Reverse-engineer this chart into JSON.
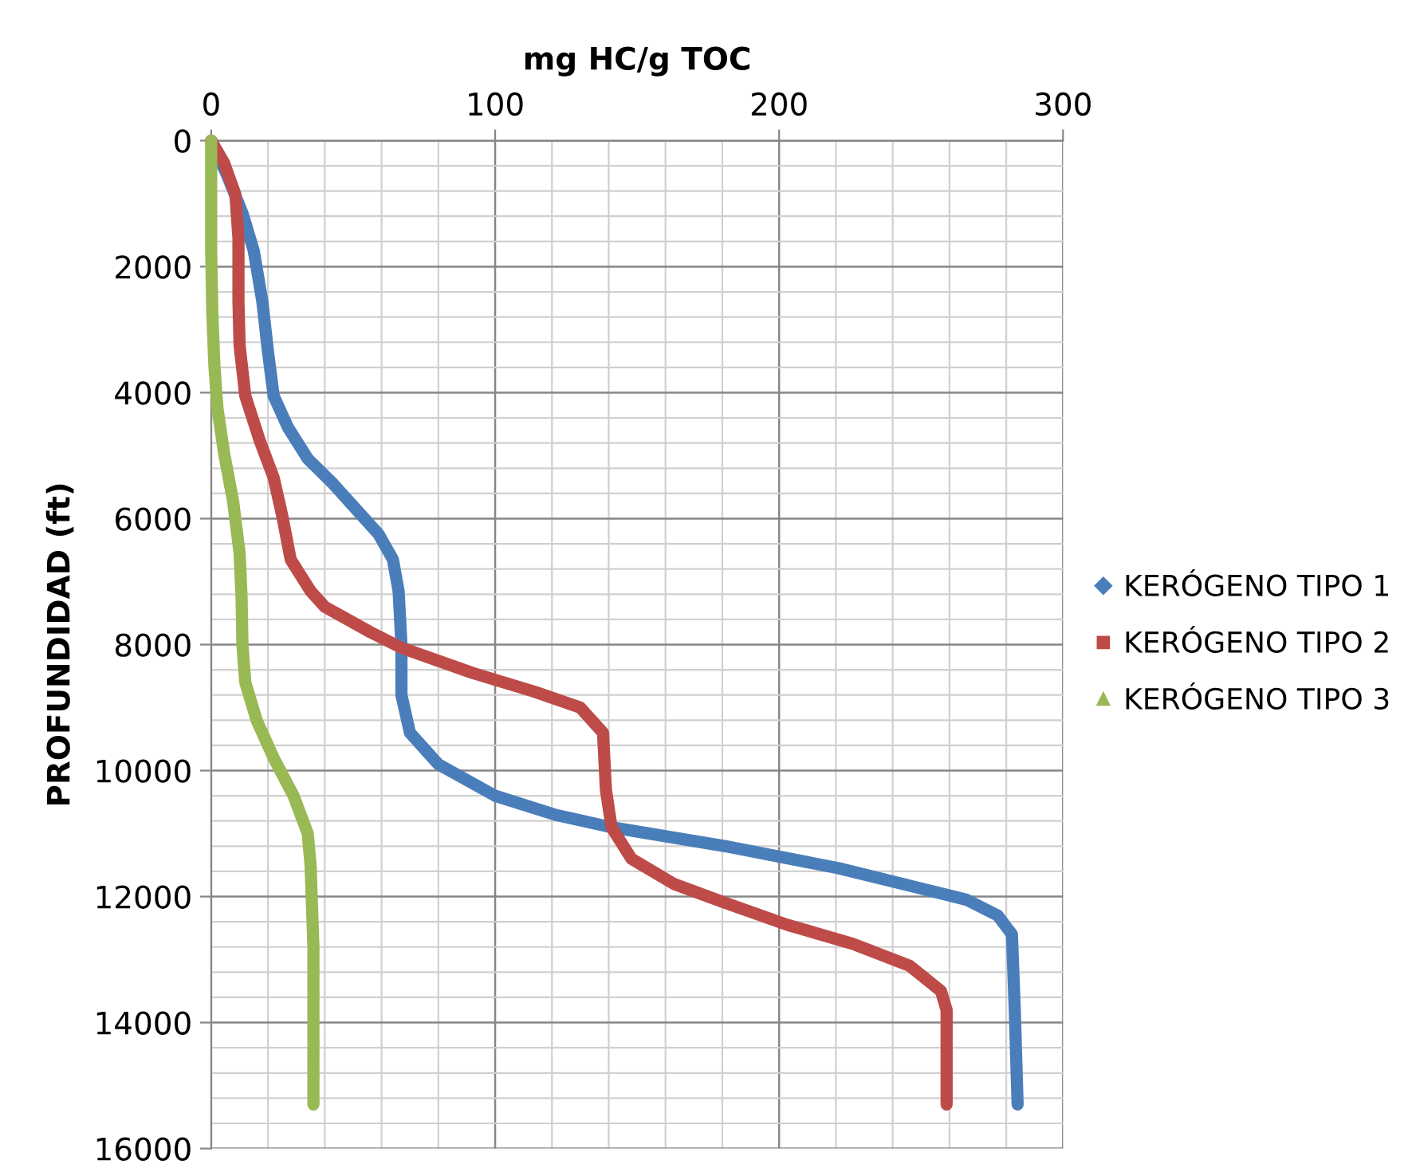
{
  "chart_data": {
    "type": "line",
    "xlabel": "mg HC/g TOC",
    "ylabel": "PROFUNDIDAD (ft)",
    "xlim": [
      0,
      300
    ],
    "xticks": [
      0,
      100,
      200,
      300
    ],
    "ylim": [
      16000,
      0
    ],
    "yticks": [
      0,
      2000,
      4000,
      6000,
      8000,
      10000,
      12000,
      14000,
      16000
    ],
    "grid": true,
    "legend": "right",
    "series": [
      {
        "name": "KERÓGENO TIPO 1",
        "color": "#4a7ebb",
        "marker": "diamond",
        "x": [
          0,
          5.6,
          11,
          15,
          18,
          20,
          22,
          27,
          34,
          43,
          51,
          59,
          64,
          66,
          67,
          67,
          70,
          80,
          100,
          121,
          141,
          181,
          221,
          248,
          266,
          277,
          282,
          283,
          284
        ],
        "values": [
          0,
          550,
          1150,
          1750,
          2550,
          3350,
          4050,
          4550,
          5050,
          5450,
          5850,
          6250,
          6650,
          7150,
          8000,
          8800,
          9400,
          9900,
          10400,
          10700,
          10900,
          11200,
          11550,
          11850,
          12050,
          12300,
          12600,
          13800,
          15300
        ]
      },
      {
        "name": "KERÓGENO TIPO 2",
        "color": "#be4b48",
        "marker": "square",
        "x": [
          0,
          4.5,
          8.5,
          9.6,
          9.6,
          10,
          12,
          17,
          22,
          25,
          28,
          35,
          40,
          56,
          67,
          92,
          114,
          130,
          138,
          139,
          141,
          148,
          163,
          181,
          203,
          226,
          246,
          257,
          259,
          259
        ],
        "values": [
          0,
          350,
          850,
          1550,
          2550,
          3250,
          4050,
          4750,
          5350,
          5950,
          6650,
          7150,
          7400,
          7800,
          8050,
          8450,
          8750,
          9000,
          9400,
          10300,
          10900,
          11400,
          11800,
          12100,
          12450,
          12750,
          13100,
          13500,
          13800,
          15300
        ]
      },
      {
        "name": "KERÓGENO TIPO 3",
        "color": "#98b954",
        "marker": "triangle",
        "x": [
          0,
          0,
          0.4,
          1.1,
          2.2,
          4.5,
          7.8,
          10,
          10.7,
          11,
          12,
          16,
          22,
          29,
          34,
          35,
          36,
          36
        ],
        "values": [
          0,
          1750,
          2750,
          3550,
          4250,
          4950,
          5750,
          6550,
          7250,
          8000,
          8600,
          9200,
          9800,
          10400,
          11000,
          11500,
          12800,
          15300
        ]
      }
    ]
  }
}
